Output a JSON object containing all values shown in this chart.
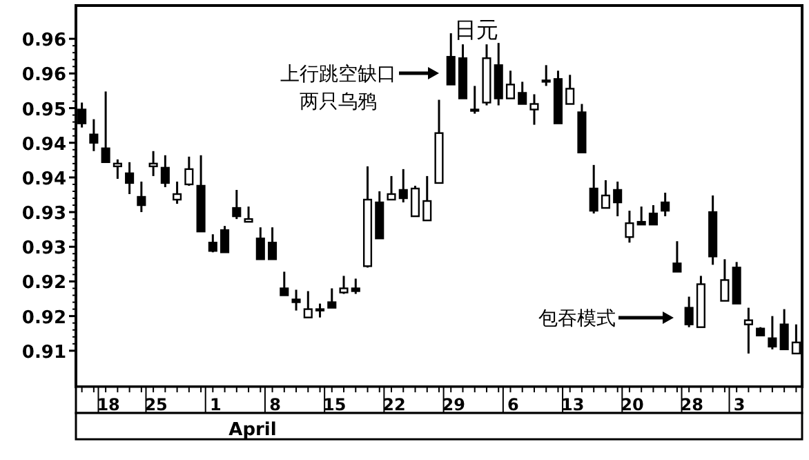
{
  "chart_data": {
    "type": "candlestick",
    "title": "日元",
    "categories": [
      null,
      null,
      "18",
      null,
      null,
      null,
      "25",
      null,
      null,
      null,
      null,
      "1",
      null,
      null,
      null,
      null,
      "8",
      null,
      null,
      null,
      null,
      "15",
      null,
      null,
      null,
      null,
      "22",
      null,
      null,
      null,
      null,
      "29",
      null,
      null,
      null,
      null,
      "6",
      null,
      null,
      null,
      null,
      "13",
      null,
      null,
      null,
      null,
      "20",
      null,
      null,
      null,
      null,
      "28",
      null,
      null,
      null,
      "3",
      null,
      null,
      null,
      null,
      null
    ],
    "ohlc": [
      [
        0.9498,
        0.9508,
        0.9472,
        0.9478
      ],
      [
        0.9462,
        0.9484,
        0.9438,
        0.945
      ],
      [
        0.9442,
        0.9524,
        0.9422,
        0.9422
      ],
      [
        0.9416,
        0.9426,
        0.9398,
        0.942
      ],
      [
        0.9406,
        0.9422,
        0.9376,
        0.9392
      ],
      [
        0.9372,
        0.9394,
        0.935,
        0.936
      ],
      [
        0.9416,
        0.9438,
        0.9402,
        0.942
      ],
      [
        0.9414,
        0.9432,
        0.9386,
        0.9392
      ],
      [
        0.9368,
        0.9394,
        0.9362,
        0.9376
      ],
      [
        0.939,
        0.943,
        0.9388,
        0.9412
      ],
      [
        0.9388,
        0.9432,
        0.9322,
        0.9322
      ],
      [
        0.9306,
        0.9318,
        0.9292,
        0.9294
      ],
      [
        0.9324,
        0.933,
        0.9292,
        0.9292
      ],
      [
        0.9356,
        0.9382,
        0.934,
        0.9344
      ],
      [
        0.9336,
        0.9358,
        0.9336,
        0.934
      ],
      [
        0.9312,
        0.9328,
        0.9282,
        0.9282
      ],
      [
        0.9306,
        0.9328,
        0.9282,
        0.9282
      ],
      [
        0.924,
        0.9264,
        0.923,
        0.923
      ],
      [
        0.9224,
        0.9238,
        0.9208,
        0.922
      ],
      [
        0.9198,
        0.9236,
        0.9198,
        0.921
      ],
      [
        0.9208,
        0.9218,
        0.9198,
        0.921
      ],
      [
        0.922,
        0.924,
        0.9212,
        0.9212
      ],
      [
        0.9234,
        0.9258,
        0.9232,
        0.924
      ],
      [
        0.924,
        0.9254,
        0.9232,
        0.9236
      ],
      [
        0.9272,
        0.9416,
        0.927,
        0.9368
      ],
      [
        0.9364,
        0.938,
        0.9312,
        0.9312
      ],
      [
        0.9368,
        0.9402,
        0.9368,
        0.9376
      ],
      [
        0.9382,
        0.9412,
        0.9364,
        0.937
      ],
      [
        0.9344,
        0.9388,
        0.9344,
        0.9384
      ],
      [
        0.9338,
        0.9402,
        0.9338,
        0.9366
      ],
      [
        0.9392,
        0.9512,
        0.9392,
        0.9464
      ],
      [
        0.9574,
        0.9608,
        0.9534,
        0.9534
      ],
      [
        0.9572,
        0.9592,
        0.9514,
        0.9514
      ],
      [
        0.9498,
        0.9532,
        0.9492,
        0.9496
      ],
      [
        0.9508,
        0.9592,
        0.9504,
        0.9572
      ],
      [
        0.9562,
        0.9594,
        0.9504,
        0.9514
      ],
      [
        0.9514,
        0.9554,
        0.9514,
        0.9534
      ],
      [
        0.9522,
        0.9538,
        0.9506,
        0.9506
      ],
      [
        0.9498,
        0.952,
        0.9476,
        0.9506
      ],
      [
        0.9538,
        0.9562,
        0.9532,
        0.954
      ],
      [
        0.9542,
        0.9554,
        0.9478,
        0.9478
      ],
      [
        0.9506,
        0.9548,
        0.9506,
        0.9528
      ],
      [
        0.9494,
        0.9506,
        0.9436,
        0.9436
      ],
      [
        0.9384,
        0.9418,
        0.9348,
        0.9352
      ],
      [
        0.9356,
        0.9396,
        0.9356,
        0.9374
      ],
      [
        0.9382,
        0.9394,
        0.9344,
        0.9364
      ],
      [
        0.9314,
        0.9352,
        0.9306,
        0.9334
      ],
      [
        0.9336,
        0.9358,
        0.9332,
        0.9332
      ],
      [
        0.9348,
        0.936,
        0.9332,
        0.9332
      ],
      [
        0.9364,
        0.9378,
        0.9344,
        0.9352
      ],
      [
        0.9276,
        0.9308,
        0.9264,
        0.9264
      ],
      [
        0.9212,
        0.9228,
        0.9184,
        0.9188
      ],
      [
        0.9184,
        0.9258,
        0.9184,
        0.9246
      ],
      [
        0.935,
        0.9374,
        0.9274,
        0.9286
      ],
      [
        0.9222,
        0.9282,
        0.9222,
        0.9252
      ],
      [
        0.927,
        0.9278,
        0.9218,
        0.9218
      ],
      [
        0.9188,
        0.9212,
        0.9146,
        0.9194
      ],
      [
        0.9182,
        0.9184,
        0.9172,
        0.9172
      ],
      [
        0.9168,
        0.92,
        0.9152,
        0.9156
      ],
      [
        0.9188,
        0.921,
        0.9152,
        0.9152
      ],
      [
        0.9146,
        0.9188,
        0.9146,
        0.9162
      ]
    ],
    "ylim": [
      0.9098,
      0.9648
    ],
    "yticks": [
      {
        "value": 0.96,
        "label": "0.96"
      },
      {
        "value": 0.955,
        "label": "0.96"
      },
      {
        "value": 0.95,
        "label": "0.95"
      },
      {
        "value": 0.945,
        "label": "0.94"
      },
      {
        "value": 0.94,
        "label": "0.94"
      },
      {
        "value": 0.935,
        "label": "0.93"
      },
      {
        "value": 0.93,
        "label": "0.93"
      },
      {
        "value": 0.925,
        "label": "0.92"
      },
      {
        "value": 0.92,
        "label": "0.92"
      },
      {
        "value": 0.915,
        "label": "0.91"
      }
    ],
    "annotations": [
      "上行跳空缺口",
      "两只乌鸦",
      "包吞模式",
      "April"
    ]
  }
}
